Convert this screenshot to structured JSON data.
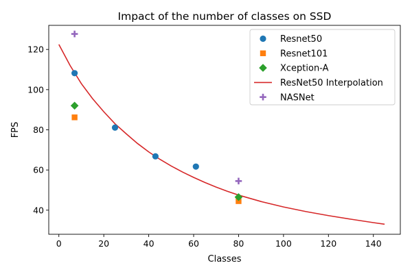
{
  "chart_data": {
    "type": "scatter",
    "title": "Impact of the number of classes on SSD",
    "xlabel": "Classes",
    "ylabel": "FPS",
    "xlim": [
      -4.5,
      152
    ],
    "ylim": [
      28,
      132
    ],
    "xticks": [
      0,
      20,
      40,
      60,
      80,
      100,
      120,
      140
    ],
    "yticks": [
      40,
      60,
      80,
      100,
      120
    ],
    "grid": false,
    "legend_position": "top-right",
    "series": [
      {
        "name": "Resnet50",
        "marker": "circle",
        "color": "#1f77b4",
        "points": [
          [
            7,
            108.2
          ],
          [
            25,
            81.1
          ],
          [
            43,
            66.8
          ],
          [
            61,
            61.7
          ]
        ]
      },
      {
        "name": "Resnet101",
        "marker": "square",
        "color": "#ff7f0e",
        "points": [
          [
            7,
            86.2
          ],
          [
            80,
            44.5
          ]
        ]
      },
      {
        "name": "Xception-A",
        "marker": "diamond",
        "color": "#2ca02c",
        "points": [
          [
            7,
            92.0
          ],
          [
            80,
            46.5
          ]
        ]
      },
      {
        "name": "ResNet50 Interpolation",
        "marker": "line",
        "color": "#d62728",
        "curve": [
          [
            0,
            122.5
          ],
          [
            5,
            112.0
          ],
          [
            10,
            103.0
          ],
          [
            15,
            95.5
          ],
          [
            20,
            89.0
          ],
          [
            25,
            83.0
          ],
          [
            30,
            78.0
          ],
          [
            35,
            73.2
          ],
          [
            40,
            69.0
          ],
          [
            45,
            65.3
          ],
          [
            50,
            62.0
          ],
          [
            55,
            59.0
          ],
          [
            60,
            56.3
          ],
          [
            65,
            53.8
          ],
          [
            70,
            51.5
          ],
          [
            75,
            49.4
          ],
          [
            80,
            47.5
          ],
          [
            90,
            44.3
          ],
          [
            100,
            41.6
          ],
          [
            110,
            39.3
          ],
          [
            120,
            37.3
          ],
          [
            130,
            35.5
          ],
          [
            140,
            33.8
          ],
          [
            145,
            33.0
          ]
        ]
      },
      {
        "name": "NASNet",
        "marker": "plus",
        "color": "#9467bd",
        "points": [
          [
            7,
            127.7
          ],
          [
            80,
            54.5
          ]
        ]
      }
    ]
  }
}
